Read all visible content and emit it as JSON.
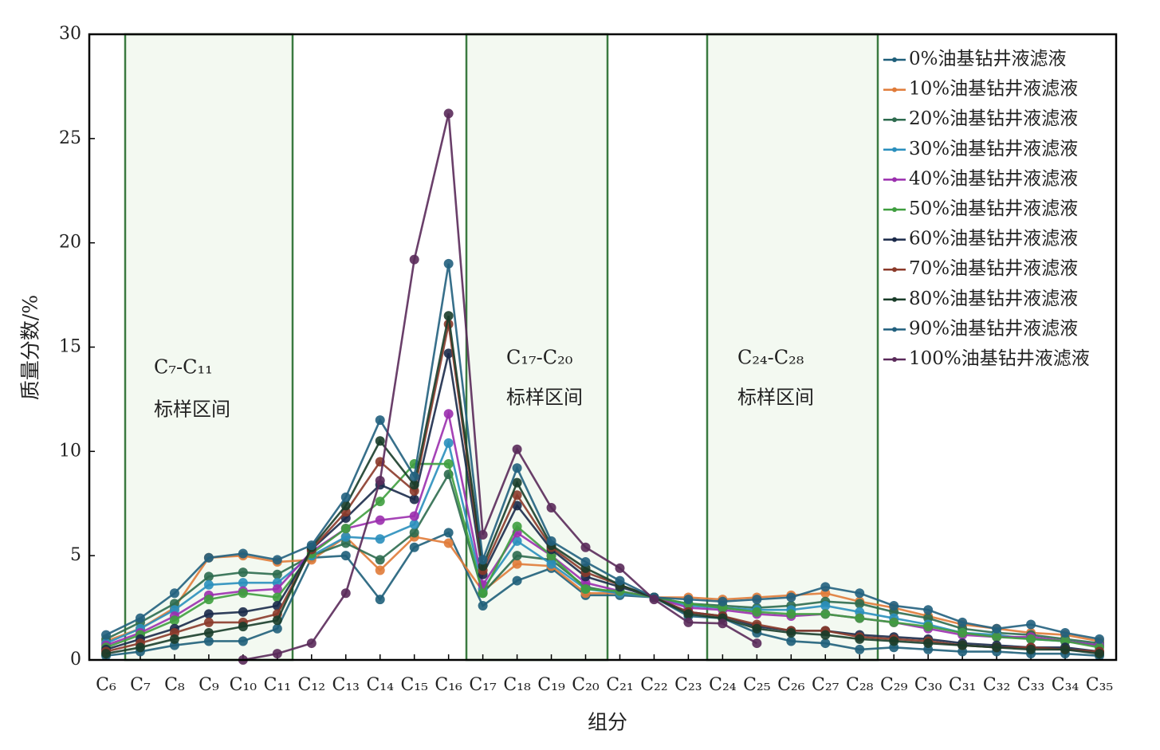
{
  "chart_data": {
    "type": "line",
    "xlabel": "组分",
    "ylabel": "质量分数/%",
    "categories": [
      "C₆",
      "C₇",
      "C₈",
      "C₉",
      "C₁₀",
      "C₁₁",
      "C₁₂",
      "C₁₃",
      "C₁₄",
      "C₁₅",
      "C₁₆",
      "C₁₇",
      "C₁₈",
      "C₁₉",
      "C₂₀",
      "C₂₁",
      "C₂₂",
      "C₂₃",
      "C₂₄",
      "C₂₅",
      "C₂₆",
      "C₂₇",
      "C₂₈",
      "C₂₉",
      "C₃₀",
      "C₃₁",
      "C₃₂",
      "C₃₃",
      "C₃₄",
      "C₃₅"
    ],
    "ylim": [
      0,
      30
    ],
    "yticks": [
      0,
      5,
      10,
      15,
      20,
      25,
      30
    ],
    "grid": false,
    "legend": "upper right",
    "annotations": [
      [
        "C₇-C₁₁",
        "标样区间"
      ],
      [
        "C₁₇-C₂₀",
        "标样区间"
      ],
      [
        "C₂₄-C₂₈",
        "标样区间"
      ]
    ],
    "series": [
      {
        "name": "0%油基钻井液滤液",
        "color": "#1f5f7a",
        "values": [
          0.2,
          0.4,
          0.7,
          0.9,
          0.9,
          1.5,
          4.9,
          5.0,
          2.9,
          5.4,
          6.1,
          2.6,
          3.8,
          4.4,
          3.1,
          3.1,
          3.0,
          2.1,
          2.0,
          1.3,
          0.9,
          0.8,
          0.5,
          0.6,
          0.5,
          0.4,
          0.4,
          0.3,
          0.3,
          0.2
        ]
      },
      {
        "name": "10%油基钻井液滤液",
        "color": "#e07b39",
        "values": [
          0.9,
          1.5,
          2.5,
          4.9,
          5.0,
          4.7,
          4.8,
          5.9,
          4.3,
          5.9,
          5.6,
          3.3,
          4.6,
          4.5,
          3.2,
          3.2,
          3.0,
          3.0,
          2.9,
          3.0,
          3.1,
          3.2,
          2.8,
          2.5,
          2.1,
          1.7,
          1.5,
          1.3,
          1.2,
          0.9
        ]
      },
      {
        "name": "20%油基钻井液滤液",
        "color": "#2e6b4f",
        "values": [
          1.0,
          1.8,
          2.7,
          4.0,
          4.2,
          4.1,
          5.0,
          5.6,
          4.8,
          6.1,
          8.9,
          3.2,
          5.0,
          4.8,
          3.5,
          3.2,
          3.0,
          2.7,
          2.6,
          2.5,
          2.6,
          2.8,
          2.7,
          2.3,
          2.0,
          1.5,
          1.3,
          1.2,
          1.0,
          0.8
        ]
      },
      {
        "name": "30%油基钻井液滤液",
        "color": "#2a8fbd",
        "values": [
          0.8,
          1.5,
          2.4,
          3.6,
          3.7,
          3.7,
          5.0,
          5.9,
          5.8,
          6.5,
          10.4,
          3.4,
          5.7,
          4.6,
          3.4,
          3.2,
          3.0,
          2.6,
          2.5,
          2.4,
          2.4,
          2.6,
          2.3,
          2.0,
          1.7,
          1.3,
          1.2,
          1.0,
          0.9,
          0.7
        ]
      },
      {
        "name": "40%油基钻井液滤液",
        "color": "#9b2fae",
        "values": [
          0.7,
          1.3,
          2.1,
          3.1,
          3.3,
          3.4,
          5.2,
          6.3,
          6.7,
          6.9,
          11.8,
          3.6,
          6.1,
          5.0,
          3.7,
          3.3,
          3.0,
          2.5,
          2.4,
          2.2,
          2.1,
          2.2,
          2.0,
          1.8,
          1.5,
          1.2,
          1.1,
          1.1,
          0.9,
          0.7
        ]
      },
      {
        "name": "50%油基钻井液滤液",
        "color": "#3f9e3f",
        "values": [
          0.6,
          1.2,
          1.9,
          2.9,
          3.2,
          3.0,
          5.1,
          6.3,
          7.6,
          9.4,
          9.4,
          3.2,
          6.4,
          5.0,
          3.4,
          3.3,
          3.0,
          2.7,
          2.5,
          2.3,
          2.2,
          2.2,
          2.0,
          1.8,
          1.6,
          1.3,
          1.1,
          1.0,
          0.9,
          0.6
        ]
      },
      {
        "name": "60%油基钻井液滤液",
        "color": "#1b2a4a",
        "values": [
          0.5,
          1.0,
          1.5,
          2.2,
          2.3,
          2.6,
          5.3,
          6.8,
          8.4,
          7.7,
          14.7,
          4.1,
          7.4,
          5.3,
          4.0,
          3.5,
          3.0,
          2.3,
          2.1,
          1.6,
          1.4,
          1.4,
          1.2,
          1.1,
          1.0,
          0.8,
          0.7,
          0.6,
          0.6,
          0.4
        ]
      },
      {
        "name": "70%油基钻井液滤液",
        "color": "#8b3a2a",
        "values": [
          0.4,
          0.8,
          1.3,
          1.8,
          1.8,
          2.2,
          5.3,
          7.1,
          9.5,
          8.1,
          16.1,
          4.3,
          7.9,
          5.4,
          4.2,
          3.6,
          3.0,
          2.3,
          2.1,
          1.7,
          1.4,
          1.4,
          1.1,
          1.0,
          0.9,
          0.7,
          0.6,
          0.6,
          0.5,
          0.4
        ]
      },
      {
        "name": "80%油基钻井液滤液",
        "color": "#1a3d2a",
        "values": [
          0.3,
          0.6,
          1.0,
          1.3,
          1.6,
          1.9,
          5.4,
          7.4,
          10.5,
          8.4,
          16.5,
          4.5,
          8.5,
          5.5,
          4.4,
          3.6,
          3.0,
          2.2,
          2.0,
          1.5,
          1.3,
          1.2,
          1.0,
          0.9,
          0.8,
          0.7,
          0.6,
          0.5,
          0.5,
          0.3
        ]
      },
      {
        "name": "90%油基钻井液滤液",
        "color": "#22607e",
        "values": [
          1.2,
          2.0,
          3.2,
          4.9,
          5.1,
          4.8,
          5.5,
          7.8,
          11.5,
          8.8,
          19.0,
          4.8,
          9.2,
          5.7,
          4.7,
          3.8,
          3.0,
          2.9,
          2.8,
          2.9,
          3.0,
          3.5,
          3.2,
          2.6,
          2.4,
          1.8,
          1.5,
          1.7,
          1.3,
          1.0
        ]
      },
      {
        "name": "100%油基钻井液滤液",
        "color": "#5a2a5a",
        "values": [
          null,
          null,
          null,
          null,
          0.0,
          0.3,
          0.8,
          3.2,
          8.6,
          19.2,
          26.2,
          6.0,
          10.1,
          7.3,
          5.4,
          4.4,
          2.9,
          1.8,
          1.75,
          0.8,
          null,
          null,
          null,
          null,
          null,
          null,
          null,
          null,
          null,
          null
        ]
      }
    ]
  }
}
